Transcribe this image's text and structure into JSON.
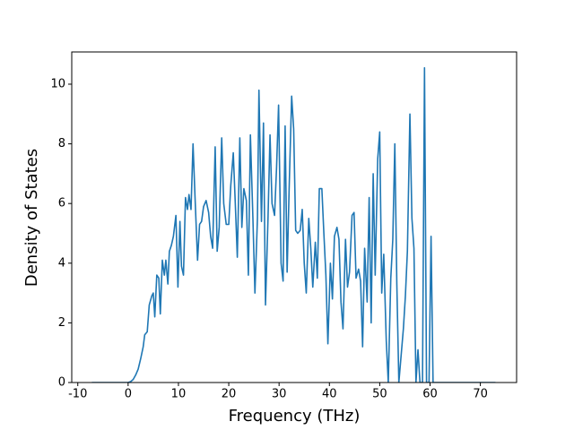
{
  "chart_data": {
    "type": "line",
    "xlabel": "Frequency (THz)",
    "ylabel": "Density of States",
    "x": [
      -7.2,
      -2,
      0,
      0.5,
      1,
      1.5,
      2,
      2.5,
      3,
      3.3,
      3.8,
      4.2,
      4.7,
      5.0,
      5.3,
      5.7,
      6.1,
      6.4,
      6.8,
      7.2,
      7.5,
      7.9,
      8.2,
      8.6,
      9,
      9.5,
      9.9,
      10.3,
      10.6,
      11,
      11.4,
      11.8,
      12.1,
      12.5,
      12.9,
      13.3,
      13.8,
      14.2,
      14.6,
      15,
      15.5,
      16,
      16.4,
      16.8,
      17.3,
      17.7,
      18.1,
      18.6,
      19,
      19.5,
      20,
      20.4,
      20.9,
      21.3,
      21.7,
      22.2,
      22.6,
      23,
      23.5,
      23.9,
      24.3,
      24.8,
      25.2,
      25.7,
      26,
      26.5,
      26.9,
      27.3,
      27.8,
      28.2,
      28.6,
      29.1,
      29.5,
      29.9,
      30.4,
      30.8,
      31.2,
      31.6,
      32,
      32.5,
      32.9,
      33.3,
      33.7,
      34.2,
      34.6,
      35,
      35.4,
      35.9,
      36.3,
      36.7,
      37.2,
      37.6,
      38,
      38.5,
      38.9,
      39.3,
      39.7,
      40.2,
      40.6,
      41,
      41.5,
      41.9,
      42.3,
      42.7,
      43.2,
      43.6,
      44,
      44.5,
      44.9,
      45.3,
      45.8,
      46.2,
      46.6,
      47,
      47.5,
      47.9,
      48.3,
      48.7,
      49.1,
      49.6,
      50,
      50.4,
      50.8,
      51.3,
      51.7,
      52.2,
      52.6,
      53,
      53.4,
      53.8,
      54.3,
      54.7,
      55.1,
      55.5,
      56,
      56.4,
      56.8,
      57.2,
      57.6,
      58,
      58.5,
      58.9,
      59.3,
      59.8,
      60.2,
      60.6,
      61,
      73
    ],
    "values": [
      0,
      0,
      0,
      0.03,
      0.1,
      0.25,
      0.45,
      0.8,
      1.2,
      1.6,
      1.7,
      2.6,
      2.9,
      3.0,
      2.2,
      3.6,
      3.5,
      2.3,
      4.1,
      3.6,
      4.1,
      3.3,
      4.4,
      4.6,
      4.9,
      5.6,
      3.2,
      5.4,
      3.9,
      3.6,
      6.2,
      5.8,
      6.3,
      5.8,
      8.0,
      6.2,
      4.1,
      5.3,
      5.4,
      5.9,
      6.1,
      5.7,
      4.9,
      4.5,
      7.9,
      4.4,
      5.2,
      8.2,
      6.0,
      5.3,
      5.3,
      6.6,
      7.7,
      6.0,
      4.2,
      8.2,
      5.2,
      6.5,
      6.1,
      3.6,
      8.3,
      5.5,
      3.0,
      5.5,
      9.8,
      5.4,
      8.7,
      2.6,
      5.5,
      8.3,
      6.0,
      5.6,
      7.2,
      9.3,
      4.0,
      3.4,
      8.6,
      3.7,
      6.5,
      9.6,
      8.5,
      5.1,
      5.0,
      5.1,
      5.8,
      4.0,
      3.0,
      5.5,
      4.5,
      3.2,
      4.7,
      3.5,
      6.5,
      6.5,
      5.0,
      3.6,
      1.3,
      4.0,
      2.8,
      4.9,
      5.2,
      4.8,
      2.7,
      1.8,
      4.8,
      3.2,
      3.7,
      5.6,
      5.7,
      3.5,
      3.8,
      3.4,
      1.2,
      4.5,
      2.7,
      6.2,
      2.0,
      7.0,
      3.6,
      7.5,
      8.4,
      3.0,
      4.3,
      1.4,
      0,
      3.5,
      4.8,
      8.0,
      3.3,
      0,
      1.0,
      1.8,
      2.9,
      4.4,
      9.0,
      5.5,
      4.5,
      0,
      1.1,
      0,
      0,
      10.55,
      0,
      0,
      4.9,
      0,
      0,
      0
    ],
    "color": "#1f77b4",
    "xlim": [
      -11.2,
      77.2
    ],
    "xticks": [
      -10,
      0,
      10,
      20,
      30,
      40,
      50,
      60,
      70
    ],
    "ylim": [
      0,
      11.08
    ],
    "yticks": [
      0,
      2,
      4,
      6,
      8,
      10
    ]
  }
}
